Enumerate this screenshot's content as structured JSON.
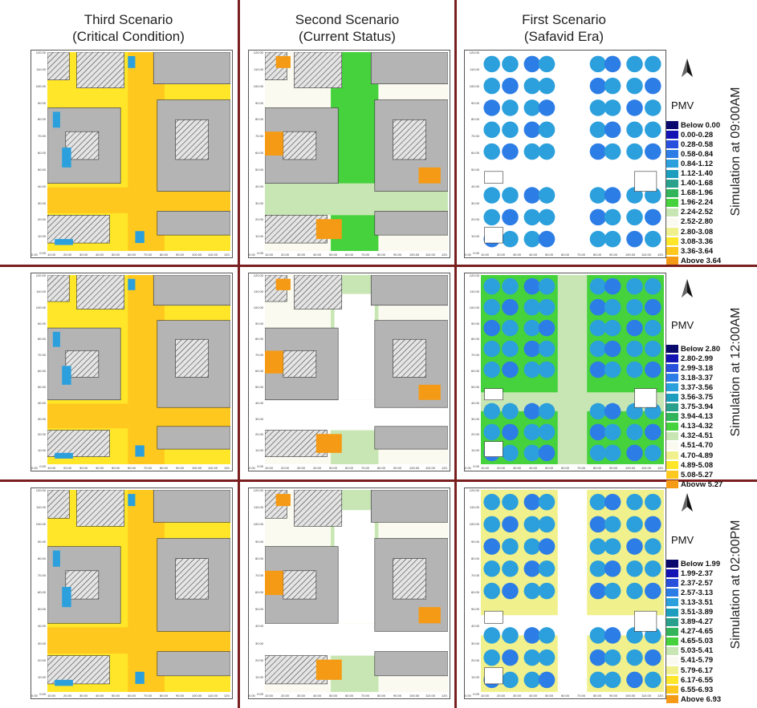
{
  "columns": [
    {
      "line1": "Third Scenario",
      "line2": "(Critical Condition)"
    },
    {
      "line1": "Second Scenario",
      "line2": "(Current Status)"
    },
    {
      "line1": "First Scenario",
      "line2": "(Safavid Era)"
    }
  ],
  "rows": [
    {
      "simulation_label": "Simulation at 09:00AM",
      "legend_title": "PMV",
      "legend": [
        {
          "label": "Below 0.00",
          "color": "#0a0a6e"
        },
        {
          "label": "0.00-0.28",
          "color": "#1414b4"
        },
        {
          "label": "0.28-0.58",
          "color": "#2850dc"
        },
        {
          "label": "0.58-0.84",
          "color": "#2d7de6"
        },
        {
          "label": "0.84-1.12",
          "color": "#2ca0dc"
        },
        {
          "label": "1.12-1.40",
          "color": "#1e9ebe"
        },
        {
          "label": "1.40-1.68",
          "color": "#28a08c"
        },
        {
          "label": "1.68-1.96",
          "color": "#32b45a"
        },
        {
          "label": "1.96-2.24",
          "color": "#46d23c"
        },
        {
          "label": "2.24-2.52",
          "color": "#c8e6b4"
        },
        {
          "label": "2.52-2.80",
          "color": "#fafaf0"
        },
        {
          "label": "2.80-3.08",
          "color": "#f0f08c"
        },
        {
          "label": "3.08-3.36",
          "color": "#ffe628"
        },
        {
          "label": "3.36-3.64",
          "color": "#ffc81e"
        },
        {
          "label": "Above 3.64",
          "color": "#f59a14"
        }
      ]
    },
    {
      "simulation_label": "Simulation at 12:00AM",
      "legend_title": "PMV",
      "legend": [
        {
          "label": "Below 2.80",
          "color": "#0a0a6e"
        },
        {
          "label": "2.80-2.99",
          "color": "#1414b4"
        },
        {
          "label": "2.99-3.18",
          "color": "#2850dc"
        },
        {
          "label": "3.18-3.37",
          "color": "#2d7de6"
        },
        {
          "label": "3.37-3.56",
          "color": "#2ca0dc"
        },
        {
          "label": "3.56-3.75",
          "color": "#1e9ebe"
        },
        {
          "label": "3.75-3.94",
          "color": "#28a08c"
        },
        {
          "label": "3.94-4.13",
          "color": "#32b45a"
        },
        {
          "label": "4.13-4.32",
          "color": "#46d23c"
        },
        {
          "label": "4.32-4.51",
          "color": "#c8e6b4"
        },
        {
          "label": "4.51-4.70",
          "color": "#fafaf0"
        },
        {
          "label": "4.70-4.89",
          "color": "#f0f08c"
        },
        {
          "label": "4.89-5.08",
          "color": "#ffe628"
        },
        {
          "label": "5.08-5.27",
          "color": "#ffc81e"
        },
        {
          "label": "Abovw 5.27",
          "color": "#f59a14"
        }
      ]
    },
    {
      "simulation_label": "Simulation at 02:00PM",
      "legend_title": "PMV",
      "legend": [
        {
          "label": "Below 1.99",
          "color": "#0a0a6e"
        },
        {
          "label": "1.99-2.37",
          "color": "#1414b4"
        },
        {
          "label": "2.37-2.57",
          "color": "#2850dc"
        },
        {
          "label": "2.57-3.13",
          "color": "#2d7de6"
        },
        {
          "label": "3.13-3.51",
          "color": "#2ca0dc"
        },
        {
          "label": "3.51-3.89",
          "color": "#1e9ebe"
        },
        {
          "label": "3.89-4.27",
          "color": "#28a08c"
        },
        {
          "label": "4.27-4.65",
          "color": "#32b45a"
        },
        {
          "label": "4.65-5.03",
          "color": "#46d23c"
        },
        {
          "label": "5.03-5.41",
          "color": "#c8e6b4"
        },
        {
          "label": "5.41-5.79",
          "color": "#fafaf0"
        },
        {
          "label": "5.79-6.17",
          "color": "#f0f08c"
        },
        {
          "label": "6.17-6.55",
          "color": "#ffe628"
        },
        {
          "label": "6.55-6.93",
          "color": "#ffc81e"
        },
        {
          "label": "Above 6.93",
          "color": "#f59a14"
        }
      ]
    }
  ],
  "axis": {
    "x_ticks": [
      "0.00",
      "10.00",
      "20.00",
      "30.00",
      "40.00",
      "50.00",
      "60.00",
      "70.00",
      "80.00",
      "90.00",
      "100.00",
      "110.00",
      "120."
    ],
    "y_ticks": [
      "120.00",
      "110.00",
      "100.00",
      "90.00",
      "80.00",
      "70.00",
      "60.00",
      "50.00",
      "40.00",
      "30.00",
      "20.00",
      "10.00",
      "0.00"
    ]
  },
  "map_colors": {
    "building": "#b4b4b4",
    "hatch": "#3a3a3a",
    "third_fill": "#ffe628",
    "third_road": "#ffc81e",
    "third_cool": "#2ca0dc",
    "second_green": "#46d23c",
    "second_pale": "#c8e6b4",
    "second_orange": "#f59a14",
    "first_tree": "#2ca0dc",
    "first_tree_dark": "#2d7de6",
    "first_ground_pale": "#c8e6b4",
    "first_ground_green": "#46d23c",
    "first_ground_yellow": "#f0f08c"
  }
}
